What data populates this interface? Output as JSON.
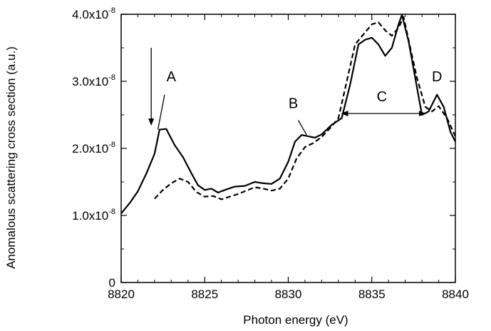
{
  "chart_data": {
    "type": "line",
    "xlabel": "Photon energy (eV)",
    "ylabel": "Anomalous scattering cross section (a.u.)",
    "xlim": [
      8820,
      8840
    ],
    "ylim": [
      0,
      4e-08
    ],
    "xticks": [
      8820,
      8825,
      8830,
      8835,
      8840
    ],
    "xtick_labels": [
      "8820",
      "8825",
      "8830",
      "8835",
      "8840"
    ],
    "yticks": [
      0,
      1e-08,
      2e-08,
      3e-08,
      4e-08
    ],
    "ytick_labels": [
      {
        "base": "0",
        "exp": ""
      },
      {
        "base": "1.0x10",
        "exp": "-8"
      },
      {
        "base": "2.0x10",
        "exp": "-8"
      },
      {
        "base": "3.0x10",
        "exp": "-8"
      },
      {
        "base": "4.0x10",
        "exp": "-8"
      }
    ],
    "grid": false,
    "series": [
      {
        "style": "solid",
        "x": [
          8820,
          8820.5,
          8821,
          8821.5,
          8822,
          8822.3,
          8822.7,
          8823.2,
          8823.7,
          8824.2,
          8824.6,
          8825,
          8825.4,
          8825.8,
          8826.2,
          8826.8,
          8827.4,
          8828,
          8828.5,
          8829,
          8829.5,
          8830,
          8830.4,
          8830.8,
          8831.2,
          8831.6,
          8832,
          8832.6,
          8833.2,
          8833.7,
          8834.2,
          8834.6,
          8835,
          8835.4,
          8835.8,
          8836.2,
          8836.6,
          8836.8,
          8837.2,
          8837.6,
          8838,
          8838.4,
          8838.9,
          8839.3,
          8839.7,
          8840
        ],
        "y": [
          1.03e-08,
          1.18e-08,
          1.36e-08,
          1.62e-08,
          1.92e-08,
          2.28e-08,
          2.29e-08,
          2.05e-08,
          1.87e-08,
          1.63e-08,
          1.45e-08,
          1.38e-08,
          1.4e-08,
          1.34e-08,
          1.38e-08,
          1.43e-08,
          1.44e-08,
          1.5e-08,
          1.48e-08,
          1.47e-08,
          1.55e-08,
          1.8e-08,
          2.1e-08,
          2.2e-08,
          2.18e-08,
          2.16e-08,
          2.21e-08,
          2.35e-08,
          2.45e-08,
          2.95e-08,
          3.55e-08,
          3.62e-08,
          3.65e-08,
          3.55e-08,
          3.38e-08,
          3.5e-08,
          3.85e-08,
          3.99e-08,
          3.6e-08,
          3.05e-08,
          2.5e-08,
          2.55e-08,
          2.8e-08,
          2.62e-08,
          2.25e-08,
          2.1e-08
        ]
      },
      {
        "style": "dashed",
        "x": [
          8822,
          8822.5,
          8823,
          8823.5,
          8824,
          8824.5,
          8825,
          8825.5,
          8826,
          8826.5,
          8827,
          8827.5,
          8828,
          8828.5,
          8829,
          8829.5,
          8830,
          8830.5,
          8831,
          8831.5,
          8832,
          8832.5,
          8833,
          8833.5,
          8834,
          8834.5,
          8835,
          8835.4,
          8835.8,
          8836.2,
          8836.6,
          8836.9,
          8837.3,
          8837.7,
          8838.2,
          8838.6,
          8839,
          8839.5,
          8840
        ],
        "y": [
          1.25e-08,
          1.38e-08,
          1.48e-08,
          1.55e-08,
          1.5e-08,
          1.35e-08,
          1.28e-08,
          1.29e-08,
          1.24e-08,
          1.28e-08,
          1.32e-08,
          1.37e-08,
          1.42e-08,
          1.4e-08,
          1.37e-08,
          1.4e-08,
          1.55e-08,
          1.85e-08,
          2.02e-08,
          2.08e-08,
          2.17e-08,
          2.3e-08,
          2.45e-08,
          3e-08,
          3.55e-08,
          3.7e-08,
          3.85e-08,
          3.88e-08,
          3.76e-08,
          3.68e-08,
          3.8e-08,
          3.96e-08,
          3.5e-08,
          3.05e-08,
          2.62e-08,
          2.55e-08,
          2.63e-08,
          2.45e-08,
          2.18e-08
        ]
      }
    ],
    "annotations": [
      {
        "label": "A",
        "x": 8823,
        "y": 3e-08
      },
      {
        "label": "B",
        "x": 8830.3,
        "y": 2.6e-08
      },
      {
        "label": "C",
        "x": 8835.6,
        "y": 2.7e-08
      },
      {
        "label": "D",
        "x": 8838.9,
        "y": 3e-08
      }
    ],
    "arrows": [
      {
        "from": [
          8821.8,
          3.5e-08
        ],
        "to": [
          8821.8,
          2.35e-08
        ]
      },
      {
        "double": true,
        "from": [
          8833.2,
          2.52e-08
        ],
        "to": [
          8838.2,
          2.52e-08
        ]
      }
    ],
    "leaders": [
      {
        "from": [
          8822.6,
          2.8e-08
        ],
        "to": [
          8822.2,
          2.28e-08
        ]
      },
      {
        "from": [
          8830.6,
          2.42e-08
        ],
        "to": [
          8831.1,
          2.2e-08
        ]
      }
    ]
  }
}
